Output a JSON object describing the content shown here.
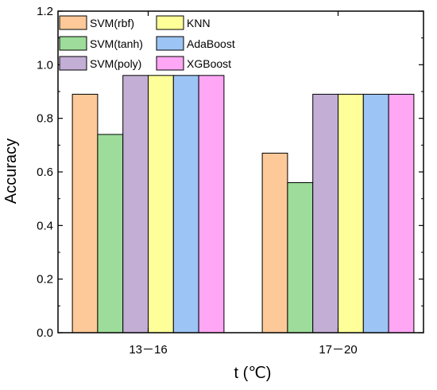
{
  "chart_data": {
    "type": "bar",
    "title": "",
    "xlabel": "t (℃)",
    "ylabel": "Accuracy",
    "categories": [
      "13－16",
      "17－20"
    ],
    "ylim": [
      0,
      1.2
    ],
    "yticks": [
      "0.0",
      "0.2",
      "0.4",
      "0.6",
      "0.8",
      "1.0",
      "1.2"
    ],
    "grid": false,
    "legend_position": "top-left",
    "series": [
      {
        "name": "SVM(rbf)",
        "color": "#FDC998",
        "values": [
          0.89,
          0.67
        ]
      },
      {
        "name": "SVM(tanh)",
        "color": "#9DDC9A",
        "values": [
          0.74,
          0.56
        ]
      },
      {
        "name": "SVM(poly)",
        "color": "#C3AED6",
        "values": [
          0.96,
          0.89
        ]
      },
      {
        "name": "KNN",
        "color": "#FFFF99",
        "values": [
          0.96,
          0.89
        ]
      },
      {
        "name": "AdaBoost",
        "color": "#9CC4F4",
        "values": [
          0.96,
          0.89
        ]
      },
      {
        "name": "XGBoost",
        "color": "#FFA6F4",
        "values": [
          0.96,
          0.89
        ]
      }
    ]
  }
}
